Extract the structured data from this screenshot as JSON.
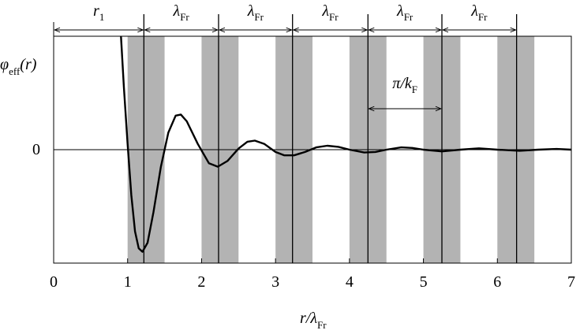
{
  "chart_data": {
    "type": "line",
    "y_label": {
      "symbol": "φ",
      "sub": "eff",
      "rest": "(r)"
    },
    "x_label": {
      "symbol": "r/λ",
      "sub": "Fr"
    },
    "xlim": [
      0,
      7
    ],
    "ylim": [
      -1,
      1
    ],
    "xticks": [
      0,
      1,
      2,
      3,
      4,
      5,
      6,
      7
    ],
    "yticks": [
      0
    ],
    "color": "#000000",
    "band_color": "#b3b3b3",
    "bands": [
      [
        1,
        1.5
      ],
      [
        2,
        2.5
      ],
      [
        3,
        3.5
      ],
      [
        4,
        4.5
      ],
      [
        5,
        5.5
      ],
      [
        6,
        6.5
      ]
    ],
    "markers": [
      1.22,
      2.23,
      3.23,
      4.25,
      5.25,
      6.26
    ],
    "spacing_labels": [
      {
        "symbol": "r",
        "sub": "1"
      },
      {
        "symbol": "λ",
        "sub": "Fr"
      },
      {
        "symbol": "λ",
        "sub": "Fr"
      },
      {
        "symbol": "λ",
        "sub": "Fr"
      },
      {
        "symbol": "λ",
        "sub": "Fr"
      },
      {
        "symbol": "λ",
        "sub": "Fr"
      }
    ],
    "period_label": {
      "symbol": "π/k",
      "sub": "F"
    },
    "x": [
      0.91,
      0.95,
      1.0,
      1.05,
      1.1,
      1.15,
      1.2,
      1.27,
      1.35,
      1.45,
      1.55,
      1.65,
      1.72,
      1.8,
      1.95,
      2.1,
      2.22,
      2.35,
      2.5,
      2.62,
      2.72,
      2.85,
      3.0,
      3.12,
      3.25,
      3.4,
      3.55,
      3.7,
      3.85,
      4.0,
      4.2,
      4.35,
      4.5,
      4.7,
      4.85,
      5.0,
      5.25,
      5.5,
      5.75,
      6.0,
      6.3,
      6.55,
      6.8,
      7.0
    ],
    "values": [
      1.0,
      0.55,
      0.05,
      -0.4,
      -0.72,
      -0.87,
      -0.9,
      -0.82,
      -0.55,
      -0.15,
      0.15,
      0.3,
      0.31,
      0.25,
      0.05,
      -0.12,
      -0.15,
      -0.1,
      0.01,
      0.07,
      0.08,
      0.05,
      -0.02,
      -0.05,
      -0.05,
      -0.02,
      0.02,
      0.035,
      0.025,
      0.0,
      -0.025,
      -0.02,
      0.0,
      0.02,
      0.015,
      0.0,
      -0.015,
      0.0,
      0.012,
      0.0,
      -0.01,
      0.0,
      0.006,
      0.0
    ]
  }
}
